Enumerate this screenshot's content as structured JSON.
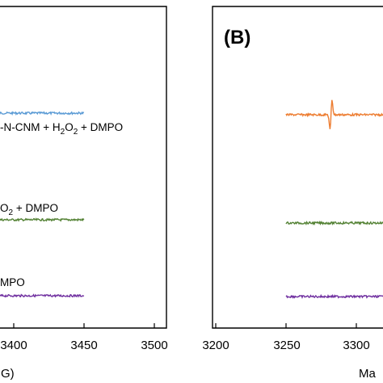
{
  "chart_data": [
    {
      "panel": "left",
      "type": "line",
      "panel_label": "",
      "xlabel": "G)",
      "xlim": [
        3358,
        3500
      ],
      "x_ticks": [
        3400,
        3450,
        3500
      ],
      "grid": false,
      "series": [
        {
          "name": "-N-CNM + H2O2 + DMPO",
          "color": "#5b9bd5",
          "x_range": [
            3358,
            3450
          ],
          "baseline_offset": 0
        },
        {
          "name": "O2 + DMPO",
          "color": "#548235",
          "x_range": [
            3358,
            3450
          ],
          "baseline_offset": 0
        },
        {
          "name": "MPO",
          "color": "#7030a0",
          "x_range": [
            3358,
            3450
          ],
          "baseline_offset": 0
        }
      ]
    },
    {
      "panel": "right",
      "type": "line",
      "panel_label": "(B)",
      "xlabel": "Ma",
      "xlim": [
        3200,
        3338
      ],
      "x_ticks": [
        3200,
        3250,
        3300
      ],
      "grid": false,
      "series": [
        {
          "name": "",
          "color": "#ed7d31",
          "x_range": [
            3250,
            3338
          ],
          "peak_at": 3282
        },
        {
          "name": "",
          "color": "#548235",
          "x_range": [
            3250,
            3338
          ]
        },
        {
          "name": "",
          "color": "#7030a0",
          "x_range": [
            3250,
            3338
          ]
        }
      ]
    }
  ],
  "labels": {
    "left_series_1": "-N-CNM + H",
    "left_series_1_sub1": "2",
    "left_series_1_mid": "O",
    "left_series_1_sub2": "2",
    "left_series_1_end": " + DMPO",
    "left_series_2_start": "O",
    "left_series_2_sub": "2",
    "left_series_2_end": " + DMPO",
    "left_series_3": "MPO",
    "left_tick_1": "3400",
    "left_tick_2": "3450",
    "left_tick_3": "3500",
    "right_tick_1": "3200",
    "right_tick_2": "3250",
    "right_tick_3": "3300",
    "left_axis_title": "G)",
    "right_axis_title": "Ma",
    "panel_b": "(B)"
  }
}
